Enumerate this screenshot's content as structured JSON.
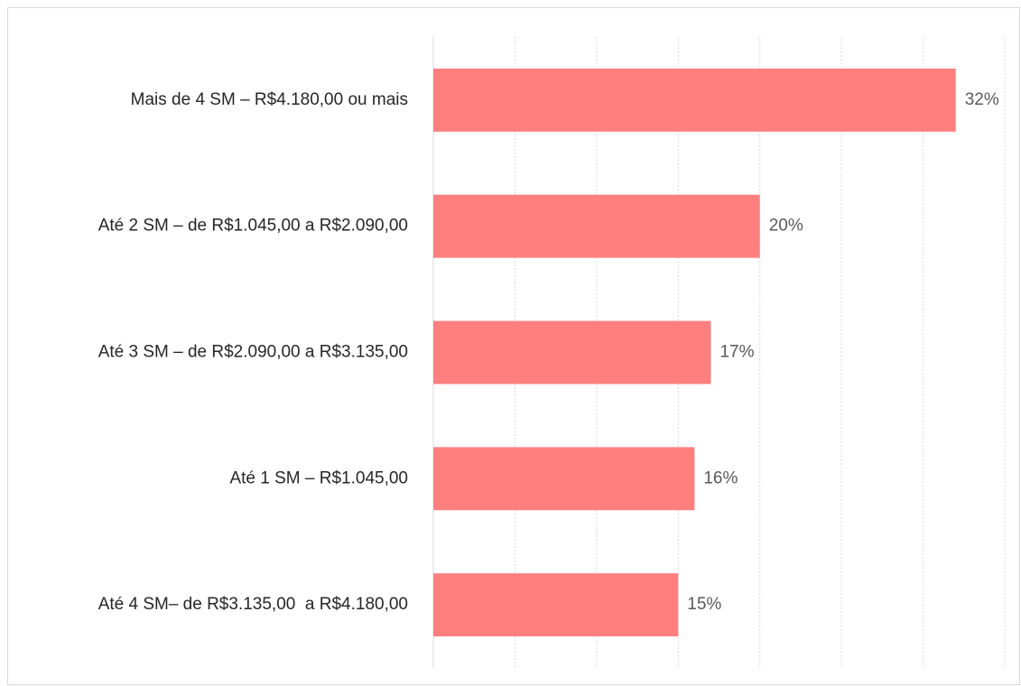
{
  "chart_data": {
    "type": "barh",
    "categories": [
      "Mais de 4 SM – R$4.180,00 ou mais",
      "Até 2 SM – de R$1.045,00 a R$2.090,00",
      "Até 3 SM – de R$2.090,00 a R$3.135,00",
      "Até 1 SM – R$1.045,00",
      "Até 4 SM– de R$3.135,00  a R$4.180,00"
    ],
    "values": [
      32,
      20,
      17,
      16,
      15
    ],
    "value_labels": [
      "32%",
      "20%",
      "17%",
      "16%",
      "15%"
    ],
    "color": "#ff7f7f",
    "xlim": [
      0,
      35
    ],
    "xticks": [
      0,
      5,
      10,
      15,
      20,
      25,
      30,
      35
    ],
    "grid": true
  }
}
